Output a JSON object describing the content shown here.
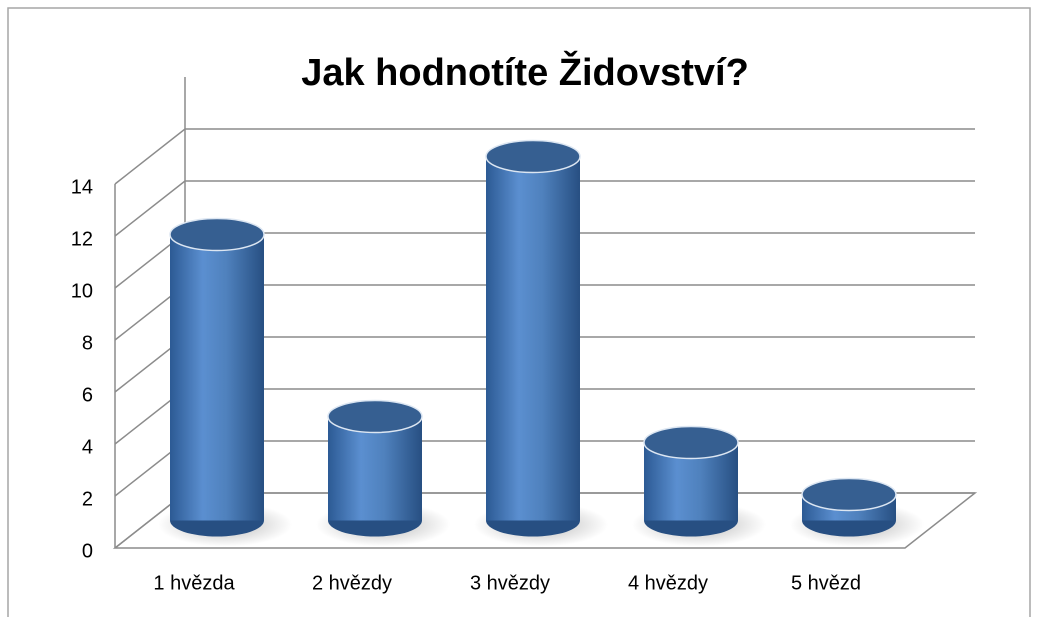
{
  "chart_data": {
    "type": "bar3d",
    "title": "Jak hodnotíte Židovství?",
    "categories": [
      "1 hvězda",
      "2 hvězdy",
      "3 hvězdy",
      "4 hvězdy",
      "5 hvězd"
    ],
    "values": [
      11,
      4,
      14,
      3,
      1
    ],
    "color": "#4f81bd",
    "ylim": [
      0,
      14
    ],
    "yticks": [
      0,
      2,
      4,
      6,
      8,
      10,
      12,
      14
    ],
    "grid": true
  }
}
